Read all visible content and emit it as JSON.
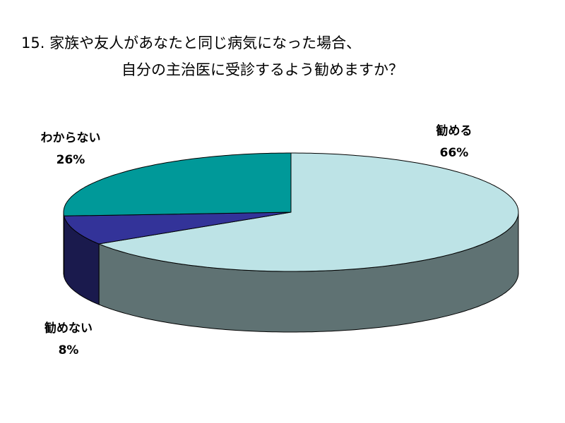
{
  "chart_data": {
    "type": "pie3d",
    "title_lines": [
      "15.  家族や友人があなたと同じ病気になった場合、",
      "自分の主治医に受診するよう勧めますか？"
    ],
    "categories": [
      "勧める",
      "勧めない",
      "わからない"
    ],
    "values": [
      66,
      8,
      26
    ],
    "value_labels": [
      "66%",
      "8%",
      "26%"
    ],
    "colors": [
      "#bde3e6",
      "#333399",
      "#009999"
    ]
  }
}
